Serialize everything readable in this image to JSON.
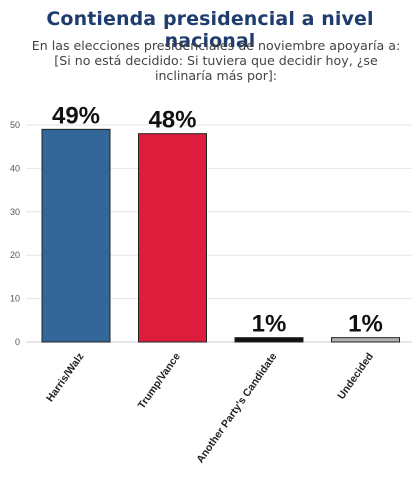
{
  "chart_data": {
    "type": "bar",
    "title": "Contienda presidencial a nivel nacional",
    "subtitle": "En las elecciones presidenciales de noviembre apoyaría a: [Si no está decidido: Si tuviera que decidir hoy, ¿se inclinaría más por]:",
    "categories": [
      "Harris/Walz",
      "Trump/Vance",
      "Another Party's Candidate",
      "Undecided"
    ],
    "values": [
      49,
      48,
      1,
      1
    ],
    "data_labels": [
      "49%",
      "48%",
      "1%",
      "1%"
    ],
    "colors": [
      "#336699",
      "#dc1d3c",
      "#111111",
      "#b0b0b0"
    ],
    "ylim": [
      0,
      50
    ],
    "yticks": [
      0,
      10,
      20,
      30,
      40,
      50
    ],
    "grid": true,
    "xlabel": "",
    "ylabel": ""
  }
}
